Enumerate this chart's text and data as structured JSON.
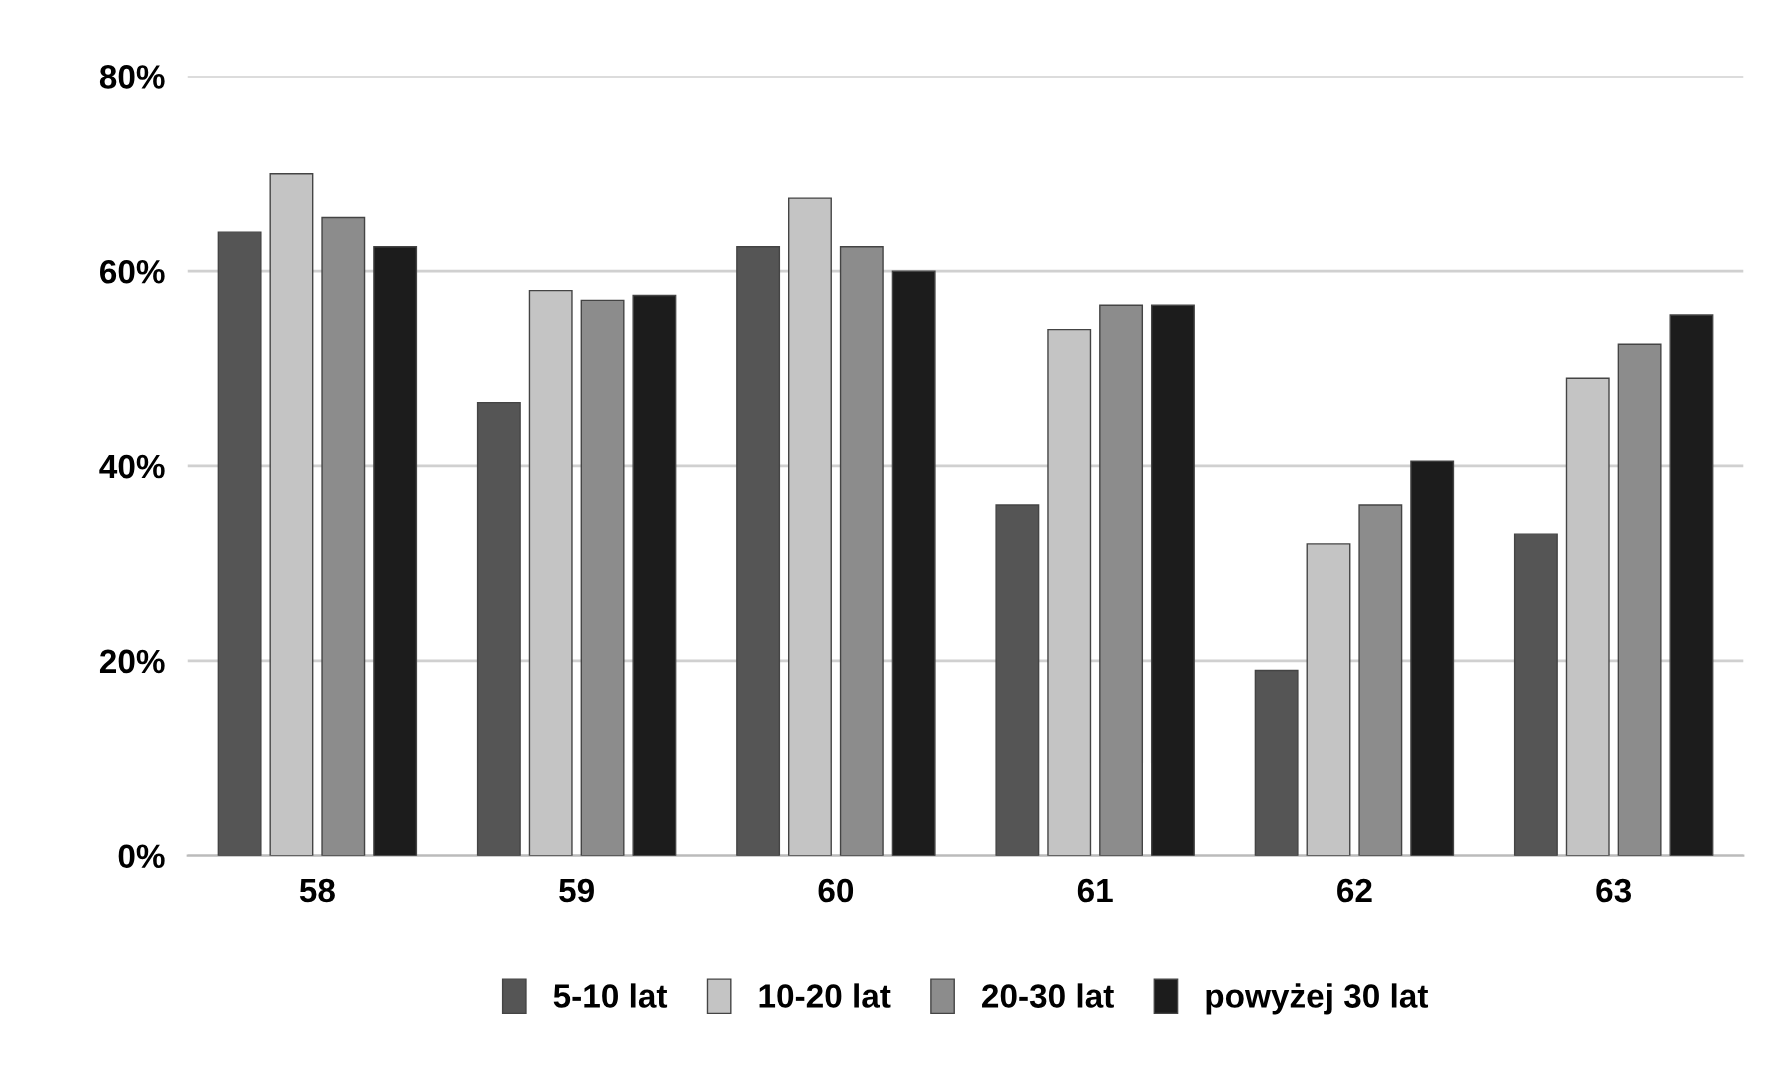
{
  "chart_data": {
    "type": "bar",
    "categories": [
      "58",
      "59",
      "60",
      "61",
      "62",
      "63"
    ],
    "series": [
      {
        "name": "5-10 lat",
        "color": "#555555",
        "values": [
          64,
          46.5,
          62.5,
          36,
          19,
          33
        ]
      },
      {
        "name": "10-20 lat",
        "color": "#c4c4c4",
        "values": [
          70,
          58,
          67.5,
          54,
          32,
          49
        ]
      },
      {
        "name": "20-30 lat",
        "color": "#8c8c8c",
        "values": [
          65.5,
          57,
          62.5,
          56.5,
          36,
          52.5
        ]
      },
      {
        "name": "powyżej 30 lat",
        "color": "#1c1c1c",
        "values": [
          62.5,
          57.5,
          60,
          56.5,
          40.5,
          55.5
        ]
      }
    ],
    "ylim": [
      0,
      80
    ],
    "yticks": [
      {
        "value": 0,
        "label": "0%"
      },
      {
        "value": 20,
        "label": "20%"
      },
      {
        "value": 40,
        "label": "40%"
      },
      {
        "value": 60,
        "label": "60%"
      },
      {
        "value": 80,
        "label": "80%"
      }
    ],
    "grid": "y",
    "legend": "bottom"
  }
}
